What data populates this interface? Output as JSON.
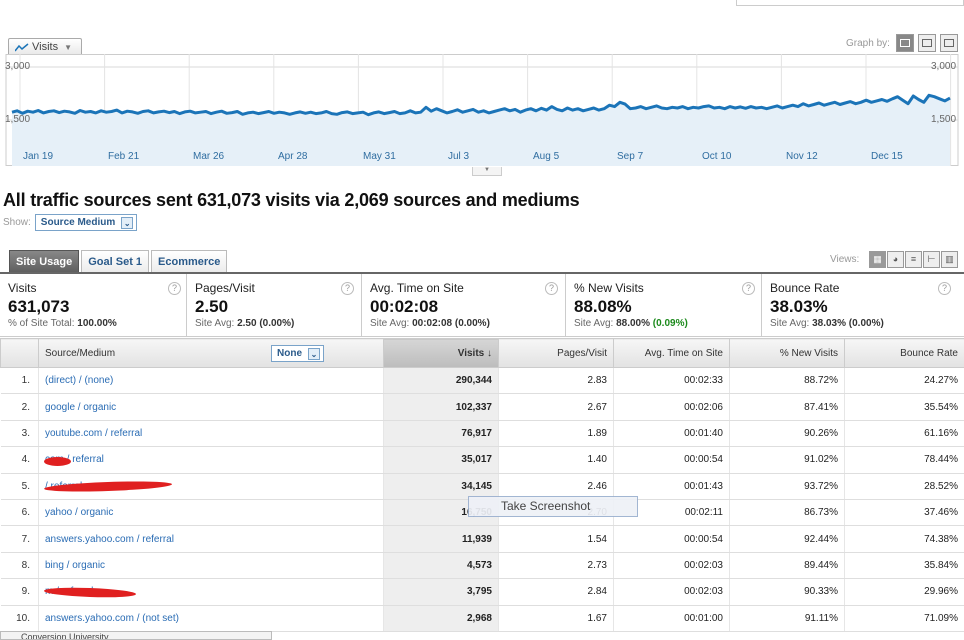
{
  "graph": {
    "metric_label": "Visits",
    "graph_by_label": "Graph by:",
    "y_ticks": [
      "3,000",
      "1,500"
    ],
    "x_labels": [
      "Jan 19",
      "Feb 21",
      "Mar 26",
      "Apr 28",
      "May 31",
      "Jul 3",
      "Aug 5",
      "Sep 7",
      "Oct 10",
      "Nov 12",
      "Dec 15"
    ],
    "line_color": "#1b74b8",
    "fill_color": "#e6f0f8"
  },
  "chart_data": {
    "type": "line",
    "ylim": [
      0,
      3000
    ],
    "series": [
      {
        "values": [
          1720,
          1760,
          1690,
          1750,
          1720,
          1770,
          1700,
          1740,
          1760,
          1710,
          1750,
          1730,
          1690,
          1770,
          1720,
          1740,
          1700,
          1760,
          1720,
          1740,
          1780,
          1700,
          1750,
          1730,
          1690,
          1740,
          1760,
          1700,
          1730,
          1750,
          1710,
          1740,
          1680,
          1730,
          1750,
          1700,
          1720,
          1740,
          1680,
          1720,
          1750,
          1690,
          1710,
          1740,
          1660,
          1700,
          1720,
          1680,
          1710,
          1740,
          1690,
          1720,
          1700,
          1660,
          1700,
          1730,
          1690,
          1720,
          1680,
          1700,
          1740,
          1680,
          1660,
          1710,
          1730,
          1680,
          1700,
          1720,
          1650,
          1700,
          1730,
          1680,
          1710,
          1740,
          1680,
          1700,
          1760,
          1700,
          1720,
          1860,
          1750,
          1820,
          1760,
          1700,
          1740,
          1790,
          1720,
          1760,
          1800,
          1720,
          1760,
          1700,
          1740,
          1780,
          1820,
          1760,
          1800,
          1720,
          1780,
          1820,
          1760,
          1830,
          1780,
          1880,
          1800,
          1760,
          1840,
          1780,
          1820,
          1760,
          1800,
          1840,
          1780,
          1820,
          1920,
          1880,
          2000,
          1950,
          1820,
          1840,
          1880,
          1820,
          1860,
          1900,
          1840,
          1820,
          1860,
          1840,
          1880,
          1820,
          1860,
          1840,
          1880,
          1900,
          1840,
          1860,
          1820,
          1880,
          1840,
          1870,
          1830,
          1880,
          1840,
          1860,
          1820,
          1860,
          1900,
          1840,
          1880,
          1920,
          1880,
          1960,
          1900,
          1940,
          1980,
          1920,
          1960,
          2000,
          1940,
          1980,
          2020,
          1960,
          2000,
          2060,
          2000,
          2040,
          2080,
          2030,
          2100,
          2160,
          2060,
          1960,
          2180,
          2080,
          2000,
          2200,
          2160,
          2100,
          2040,
          2120
        ]
      }
    ]
  },
  "collapse_glyph": "▼",
  "summary": "All traffic sources sent 631,073 visits via 2,069 sources and mediums",
  "show": {
    "label": "Show:",
    "value": "Source Medium"
  },
  "tabs": [
    "Site Usage",
    "Goal Set 1",
    "Ecommerce"
  ],
  "views_label": "Views:",
  "scorecard": [
    {
      "name": "Visits",
      "value": "631,073",
      "sub_prefix": "% of Site Total: ",
      "sub_value": "100.00%",
      "sub_delta": ""
    },
    {
      "name": "Pages/Visit",
      "value": "2.50",
      "sub_prefix": "Site Avg: ",
      "sub_value": "2.50 (0.00%)",
      "sub_delta": ""
    },
    {
      "name": "Avg. Time on Site",
      "value": "00:02:08",
      "sub_prefix": "Site Avg: ",
      "sub_value": "00:02:08 (0.00%)",
      "sub_delta": ""
    },
    {
      "name": "% New Visits",
      "value": "88.08%",
      "sub_prefix": "Site Avg: ",
      "sub_value": "88.00% ",
      "sub_delta": "(0.09%)"
    },
    {
      "name": "Bounce Rate",
      "value": "38.03%",
      "sub_prefix": "Site Avg: ",
      "sub_value": "38.03% (0.00%)",
      "sub_delta": ""
    }
  ],
  "help_glyph": "?",
  "table": {
    "headers": {
      "source": "Source/Medium",
      "none": "None",
      "visits": "Visits ↓",
      "pages": "Pages/Visit",
      "time": "Avg. Time on Site",
      "new": "% New Visits",
      "bounce": "Bounce Rate"
    },
    "rows": [
      {
        "idx": "1.",
        "source": "(direct) / (none)",
        "visits": "290,344",
        "pages": "2.83",
        "time": "00:02:33",
        "new": "88.72%",
        "bounce": "24.27%"
      },
      {
        "idx": "2.",
        "source": "google / organic",
        "visits": "102,337",
        "pages": "2.67",
        "time": "00:02:06",
        "new": "87.41%",
        "bounce": "35.54%"
      },
      {
        "idx": "3.",
        "source": "youtube.com / referral",
        "visits": "76,917",
        "pages": "1.89",
        "time": "00:01:40",
        "new": "90.26%",
        "bounce": "61.16%"
      },
      {
        "idx": "4.",
        "source": "com / referral",
        "visits": "35,017",
        "pages": "1.40",
        "time": "00:00:54",
        "new": "91.02%",
        "bounce": "78.44%"
      },
      {
        "idx": "5.",
        "source": "/ referral",
        "visits": "34,145",
        "pages": "2.46",
        "time": "00:01:43",
        "new": "93.72%",
        "bounce": "28.52%"
      },
      {
        "idx": "6.",
        "source": "yahoo / organic",
        "visits": "16,750",
        "pages": "2.70",
        "time": "00:02:11",
        "new": "86.73%",
        "bounce": "37.46%"
      },
      {
        "idx": "7.",
        "source": "answers.yahoo.com / referral",
        "visits": "11,939",
        "pages": "1.54",
        "time": "00:00:54",
        "new": "92.44%",
        "bounce": "74.38%"
      },
      {
        "idx": "8.",
        "source": "bing / organic",
        "visits": "4,573",
        "pages": "2.73",
        "time": "00:02:03",
        "new": "89.44%",
        "bounce": "35.84%"
      },
      {
        "idx": "9.",
        "source": "m / referral",
        "visits": "3,795",
        "pages": "2.84",
        "time": "00:02:03",
        "new": "90.33%",
        "bounce": "29.96%"
      },
      {
        "idx": "10.",
        "source": "answers.yahoo.com / (not set)",
        "visits": "2,968",
        "pages": "1.67",
        "time": "00:01:00",
        "new": "91.11%",
        "bounce": "71.09%"
      }
    ]
  },
  "popup": "Take Screenshot",
  "bottom_bar": "Conversion University"
}
